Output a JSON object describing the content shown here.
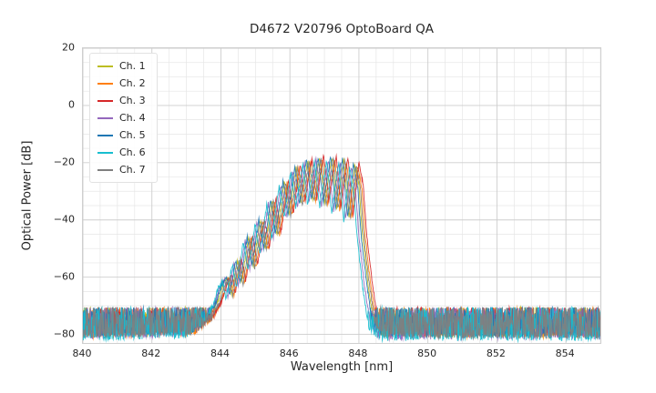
{
  "chart_data": {
    "type": "line",
    "title": "D4672 V20796 OptoBoard QA",
    "xlabel": "Wavelength [nm]",
    "ylabel": "Optical Power [dB]",
    "xlim": [
      840,
      855
    ],
    "ylim": [
      -83,
      20
    ],
    "xtick_values": [
      840,
      842,
      844,
      846,
      848,
      850,
      852,
      854
    ],
    "xtick_labels": [
      "840",
      "842",
      "844",
      "846",
      "848",
      "850",
      "852",
      "854"
    ],
    "ytick_values": [
      20,
      0,
      -20,
      -40,
      -60,
      -80
    ],
    "ytick_labels": [
      "20",
      "0",
      "−20",
      "−40",
      "−60",
      "−80"
    ],
    "grid": {
      "major": true,
      "minor": true,
      "x_minor_step": 0.5,
      "y_minor_step": 5
    },
    "legend_position": "upper-left",
    "noise_floor_db": -78,
    "noise_band_db": [
      -70,
      -87
    ],
    "peak_region_nm": [
      844.0,
      848.4
    ],
    "peak_max_db": -17.8,
    "envelope": [
      [
        840.0,
        -80
      ],
      [
        843.2,
        -79
      ],
      [
        843.7,
        -74
      ],
      [
        843.95,
        -68
      ],
      [
        844.1,
        -62
      ],
      [
        844.22,
        -60
      ],
      [
        844.32,
        -66
      ],
      [
        844.5,
        -54
      ],
      [
        844.62,
        -62
      ],
      [
        844.82,
        -46
      ],
      [
        844.96,
        -56
      ],
      [
        845.16,
        -40
      ],
      [
        845.3,
        -50
      ],
      [
        845.5,
        -33
      ],
      [
        845.64,
        -45
      ],
      [
        845.86,
        -26.5
      ],
      [
        846.0,
        -38
      ],
      [
        846.2,
        -21.5
      ],
      [
        846.34,
        -34
      ],
      [
        846.54,
        -19
      ],
      [
        846.68,
        -33
      ],
      [
        846.88,
        -17.8
      ],
      [
        847.03,
        -34
      ],
      [
        847.24,
        -17.8
      ],
      [
        847.38,
        -36
      ],
      [
        847.58,
        -18.5
      ],
      [
        847.73,
        -39
      ],
      [
        847.9,
        -20.5
      ],
      [
        848.02,
        -28
      ],
      [
        848.12,
        -45
      ],
      [
        848.28,
        -62
      ],
      [
        848.45,
        -76
      ],
      [
        848.7,
        -80
      ],
      [
        855.0,
        -80
      ]
    ],
    "series": [
      {
        "name": "Ch. 1",
        "color": "#bcbd22",
        "dx": -0.02,
        "dy": 0.0,
        "seed": 11
      },
      {
        "name": "Ch. 2",
        "color": "#ff7f0e",
        "dx": 0.06,
        "dy": -0.5,
        "seed": 22
      },
      {
        "name": "Ch. 3",
        "color": "#d62728",
        "dx": 0.1,
        "dy": 0.5,
        "seed": 33
      },
      {
        "name": "Ch. 4",
        "color": "#9467bd",
        "dx": -0.12,
        "dy": -1.0,
        "seed": 44
      },
      {
        "name": "Ch. 5",
        "color": "#1f77b4",
        "dx": -0.06,
        "dy": 0.0,
        "seed": 55
      },
      {
        "name": "Ch. 6",
        "color": "#17becf",
        "dx": -0.17,
        "dy": -1.5,
        "seed": 66
      },
      {
        "name": "Ch. 7",
        "color": "#7f7f7f",
        "dx": 0.02,
        "dy": -0.5,
        "seed": 77
      }
    ]
  }
}
